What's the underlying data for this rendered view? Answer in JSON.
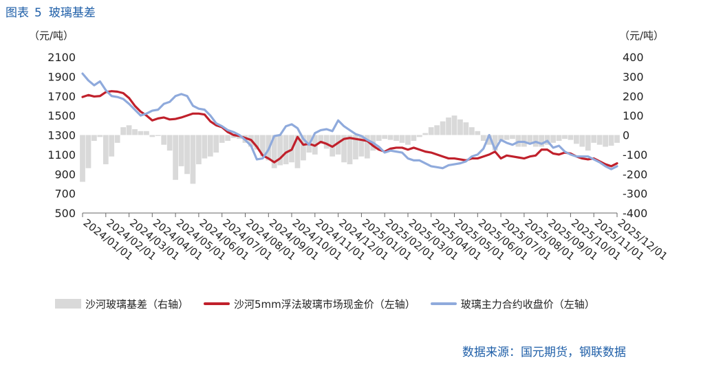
{
  "figure": {
    "label": "图表",
    "number": "5",
    "title": "玻璃基差"
  },
  "source_text": "数据来源：国元期货，钢联数据",
  "chart_data": {
    "type": "line",
    "left_unit": "（元/吨）",
    "right_unit": "（元/吨）",
    "y_left": {
      "range": [
        500,
        2100
      ],
      "ticks": [
        500,
        700,
        900,
        1100,
        1300,
        1500,
        1700,
        1900,
        2100
      ]
    },
    "y_right": {
      "range": [
        -400,
        400
      ],
      "ticks": [
        "-400",
        "-300",
        "-200",
        "-100",
        "0",
        "100",
        "200",
        "300",
        "400"
      ]
    },
    "x_range": [
      0,
      23
    ],
    "x_tick_labels": [
      "2024/01/01",
      "2024/02/01",
      "2024/03/01",
      "2024/04/01",
      "2024/05/01",
      "2024/06/01",
      "2024/07/01",
      "2024/08/01",
      "2024/09/01",
      "2024/10/01",
      "2024/11/01",
      "2024/12/01",
      "2025/01/01",
      "2025/02/01",
      "2025/03/01",
      "2025/04/01",
      "2025/05/01",
      "2025/06/01",
      "2025/07/01",
      "2025/08/01",
      "2025/09/01",
      "2025/10/01",
      "2025/11/01",
      "2025/12/01"
    ],
    "series": [
      {
        "name": "沙河玻璃基差（右轴）",
        "type": "bar",
        "axis": "right",
        "color": "#d9d9d9",
        "x": [
          0,
          0.25,
          0.5,
          0.75,
          1,
          1.25,
          1.5,
          1.75,
          2,
          2.25,
          2.5,
          2.75,
          3,
          3.25,
          3.5,
          3.75,
          4,
          4.25,
          4.5,
          4.75,
          5,
          5.25,
          5.5,
          5.75,
          6,
          6.25,
          6.5,
          6.75,
          7,
          7.25,
          7.5,
          7.75,
          8,
          8.25,
          8.5,
          8.75,
          9,
          9.25,
          9.5,
          9.75,
          10,
          10.25,
          10.5,
          10.75,
          11,
          11.25,
          11.5,
          11.75,
          12,
          12.25,
          12.5,
          12.75,
          13,
          13.25,
          13.5,
          13.75,
          14,
          14.25,
          14.5,
          14.75,
          15,
          15.25,
          15.5,
          15.75,
          16,
          16.25,
          16.5,
          16.75,
          17,
          17.25,
          17.5,
          17.75,
          18,
          18.25,
          18.5,
          18.75,
          19,
          19.25,
          19.5,
          19.75,
          20,
          20.25,
          20.5,
          20.75,
          21,
          21.25,
          21.5,
          21.75,
          22,
          22.25,
          22.5,
          22.75,
          23
        ],
        "values": [
          -240,
          -170,
          -30,
          -10,
          -150,
          -110,
          -40,
          40,
          50,
          30,
          20,
          20,
          -10,
          -5,
          -50,
          -80,
          -230,
          -160,
          -200,
          -250,
          -150,
          -120,
          -110,
          -90,
          -40,
          -30,
          -15,
          -20,
          -40,
          -60,
          -75,
          -110,
          -130,
          -170,
          -155,
          -150,
          -140,
          -170,
          -130,
          -90,
          -100,
          -45,
          -70,
          -110,
          -100,
          -140,
          -150,
          -125,
          -110,
          -120,
          -80,
          -30,
          -20,
          -25,
          -30,
          -40,
          -50,
          -30,
          -10,
          10,
          40,
          50,
          70,
          90,
          100,
          80,
          65,
          40,
          20,
          -30,
          -50,
          -80,
          -30,
          -25,
          -20,
          -60,
          -60,
          -40,
          -60,
          -60,
          -50,
          -40,
          -30,
          -20,
          -25,
          -45,
          -60,
          -80,
          -40,
          -50,
          -60,
          -55,
          -40
        ]
      },
      {
        "name": "沙河5mm浮法玻璃市场现金价（左轴）",
        "type": "line",
        "axis": "left",
        "color": "#c0202b",
        "x": [
          0,
          0.25,
          0.5,
          0.75,
          1,
          1.25,
          1.5,
          1.75,
          2,
          2.25,
          2.5,
          2.75,
          3,
          3.25,
          3.5,
          3.75,
          4,
          4.25,
          4.5,
          4.75,
          5,
          5.25,
          5.5,
          5.75,
          6,
          6.25,
          6.5,
          6.75,
          7,
          7.25,
          7.5,
          7.75,
          8,
          8.25,
          8.5,
          8.75,
          9,
          9.25,
          9.5,
          9.75,
          10,
          10.25,
          10.5,
          10.75,
          11,
          11.25,
          11.5,
          11.75,
          12,
          12.25,
          12.5,
          12.75,
          13,
          13.25,
          13.5,
          13.75,
          14,
          14.25,
          14.5,
          14.75,
          15,
          15.25,
          15.5,
          15.75,
          16,
          16.25,
          16.5,
          16.75,
          17,
          17.25,
          17.5,
          17.75,
          18,
          18.25,
          18.5,
          18.75,
          19,
          19.25,
          19.5,
          19.75,
          20,
          20.25,
          20.5,
          20.75,
          21,
          21.25,
          21.5,
          21.75,
          22,
          22.25,
          22.5,
          22.75,
          23
        ],
        "values": [
          1690,
          1710,
          1695,
          1700,
          1740,
          1750,
          1745,
          1730,
          1680,
          1600,
          1540,
          1500,
          1450,
          1470,
          1480,
          1460,
          1465,
          1480,
          1500,
          1520,
          1520,
          1510,
          1440,
          1400,
          1380,
          1330,
          1300,
          1290,
          1270,
          1250,
          1180,
          1090,
          1060,
          1020,
          1060,
          1120,
          1150,
          1280,
          1200,
          1210,
          1190,
          1230,
          1210,
          1180,
          1220,
          1260,
          1270,
          1260,
          1250,
          1240,
          1190,
          1150,
          1130,
          1160,
          1170,
          1170,
          1150,
          1170,
          1150,
          1130,
          1120,
          1100,
          1080,
          1060,
          1060,
          1050,
          1040,
          1060,
          1060,
          1080,
          1100,
          1130,
          1060,
          1090,
          1080,
          1070,
          1060,
          1080,
          1090,
          1150,
          1150,
          1110,
          1100,
          1120,
          1110,
          1080,
          1060,
          1050,
          1060,
          1030,
          1000,
          980,
          1010
        ]
      },
      {
        "name": "玻璃主力合约收盘价（左轴）",
        "type": "line",
        "axis": "left",
        "color": "#8faadc",
        "x": [
          0,
          0.25,
          0.5,
          0.75,
          1,
          1.25,
          1.5,
          1.75,
          2,
          2.25,
          2.5,
          2.75,
          3,
          3.25,
          3.5,
          3.75,
          4,
          4.25,
          4.5,
          4.75,
          5,
          5.25,
          5.5,
          5.75,
          6,
          6.25,
          6.5,
          6.75,
          7,
          7.25,
          7.5,
          7.75,
          8,
          8.25,
          8.5,
          8.75,
          9,
          9.25,
          9.5,
          9.75,
          10,
          10.25,
          10.5,
          10.75,
          11,
          11.25,
          11.5,
          11.75,
          12,
          12.25,
          12.5,
          12.75,
          13,
          13.25,
          13.5,
          13.75,
          14,
          14.25,
          14.5,
          14.75,
          15,
          15.25,
          15.5,
          15.75,
          16,
          16.25,
          16.5,
          16.75,
          17,
          17.25,
          17.5,
          17.75,
          18,
          18.25,
          18.5,
          18.75,
          19,
          19.25,
          19.5,
          19.75,
          20,
          20.25,
          20.5,
          20.75,
          21,
          21.25,
          21.5,
          21.75,
          22,
          22.25,
          22.5,
          22.75,
          23
        ],
        "values": [
          1930,
          1860,
          1810,
          1850,
          1760,
          1700,
          1690,
          1670,
          1620,
          1560,
          1500,
          1520,
          1550,
          1560,
          1620,
          1640,
          1700,
          1720,
          1700,
          1600,
          1570,
          1560,
          1500,
          1420,
          1390,
          1350,
          1330,
          1300,
          1250,
          1190,
          1050,
          1060,
          1150,
          1290,
          1300,
          1390,
          1410,
          1370,
          1260,
          1200,
          1320,
          1350,
          1360,
          1340,
          1450,
          1390,
          1350,
          1310,
          1290,
          1250,
          1220,
          1180,
          1120,
          1140,
          1130,
          1120,
          1060,
          1040,
          1040,
          1010,
          980,
          970,
          960,
          990,
          1000,
          1010,
          1030,
          1080,
          1100,
          1160,
          1300,
          1150,
          1250,
          1220,
          1200,
          1230,
          1230,
          1210,
          1230,
          1210,
          1240,
          1170,
          1190,
          1130,
          1100,
          1080,
          1080,
          1080,
          1050,
          1020,
          980,
          950,
          980
        ]
      }
    ]
  }
}
